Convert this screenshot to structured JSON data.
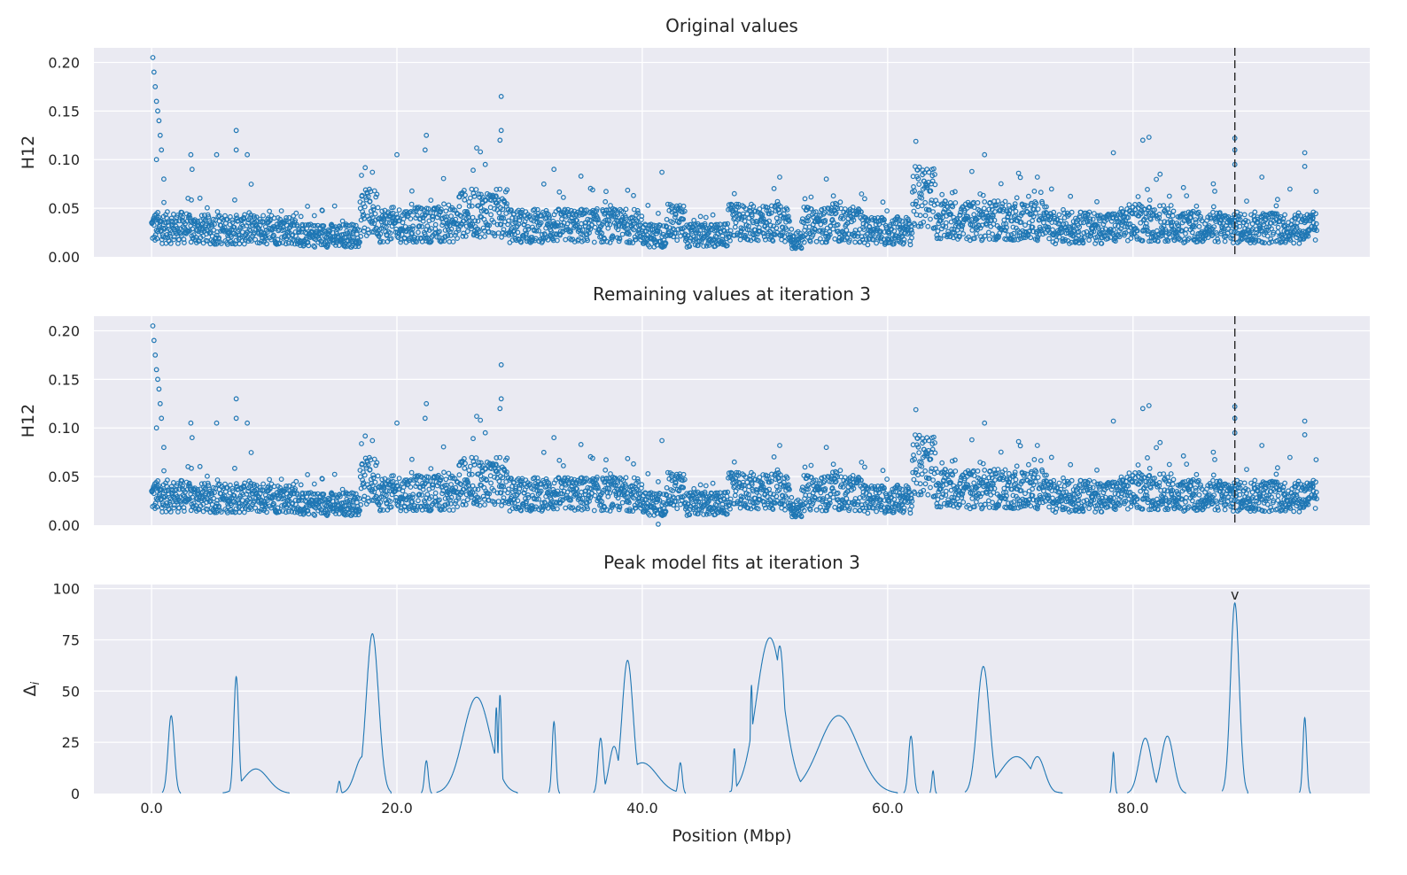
{
  "figure": {
    "xlabel": "Position (Mbp)",
    "x_ticks": [
      "0.0",
      "20.0",
      "40.0",
      "60.0",
      "80.0"
    ],
    "peak_marker": "v"
  },
  "chart_data": [
    {
      "type": "scatter",
      "title": "Original values",
      "ylabel": "H12",
      "xlim": [
        -4.7,
        99.3
      ],
      "ylim": [
        0,
        0.215
      ],
      "x_ticks": [
        0,
        20,
        40,
        60,
        80
      ],
      "y_ticks": [
        0,
        0.05,
        0.1,
        0.15,
        0.2
      ],
      "y_tick_labels": [
        "0.00",
        "0.05",
        "0.10",
        "0.15",
        "0.20"
      ],
      "marker_line_x": 88.3,
      "grid": true,
      "series": [
        {
          "x_range": [
            0,
            95
          ],
          "points": "approximately 3500 windows, baseline ~0.02-0.05 with peaks near 0 Mbp (0.205), 28.5 Mbp (0.165), 81 Mbp (0.123), 88.3 Mbp (0.122)"
        }
      ]
    },
    {
      "type": "scatter",
      "title": "Remaining values at iteration 3",
      "ylabel": "H12",
      "xlim": [
        -4.7,
        99.3
      ],
      "ylim": [
        0,
        0.215
      ],
      "x_ticks": [
        0,
        20,
        40,
        60,
        80
      ],
      "y_ticks": [
        0,
        0.05,
        0.1,
        0.15,
        0.2
      ],
      "y_tick_labels": [
        "0.00",
        "0.05",
        "0.10",
        "0.15",
        "0.20"
      ],
      "marker_line_x": 88.3,
      "grid": true
    },
    {
      "type": "line",
      "title": "Peak model fits at iteration 3",
      "ylabel": "Δi",
      "xlim": [
        -4.7,
        99.3
      ],
      "ylim": [
        0,
        102
      ],
      "x_ticks": [
        0,
        20,
        40,
        60,
        80
      ],
      "y_ticks": [
        0,
        25,
        50,
        75,
        100
      ],
      "y_tick_labels": [
        "0",
        "25",
        "50",
        "75",
        "100"
      ],
      "peak_marker_x": 88.3,
      "grid": true,
      "peaks": [
        {
          "center": 1.6,
          "height": 38,
          "width": 0.25
        },
        {
          "center": 6.9,
          "height": 57,
          "width": 0.2
        },
        {
          "center": 8.5,
          "height": 12,
          "width": 1.0
        },
        {
          "center": 15.3,
          "height": 6,
          "width": 0.1
        },
        {
          "center": 17.2,
          "height": 18,
          "width": 0.6
        },
        {
          "center": 18.0,
          "height": 78,
          "width": 0.5
        },
        {
          "center": 22.4,
          "height": 16,
          "width": 0.15
        },
        {
          "center": 26.5,
          "height": 47,
          "width": 1.1
        },
        {
          "center": 28.4,
          "height": 48,
          "width": 0.12
        },
        {
          "center": 28.1,
          "height": 42,
          "width": 0.1
        },
        {
          "center": 32.8,
          "height": 35,
          "width": 0.15
        },
        {
          "center": 36.6,
          "height": 27,
          "width": 0.2
        },
        {
          "center": 37.7,
          "height": 23,
          "width": 0.4
        },
        {
          "center": 38.8,
          "height": 65,
          "width": 0.45
        },
        {
          "center": 40.0,
          "height": 15,
          "width": 1.2
        },
        {
          "center": 43.1,
          "height": 15,
          "width": 0.15
        },
        {
          "center": 47.5,
          "height": 22,
          "width": 0.1
        },
        {
          "center": 48.9,
          "height": 53,
          "width": 0.1
        },
        {
          "center": 50.4,
          "height": 76,
          "width": 1.1
        },
        {
          "center": 51.2,
          "height": 72,
          "width": 0.4
        },
        {
          "center": 56.0,
          "height": 38,
          "width": 1.6
        },
        {
          "center": 58.6,
          "height": 3,
          "width": 0.2
        },
        {
          "center": 61.9,
          "height": 28,
          "width": 0.2
        },
        {
          "center": 63.7,
          "height": 11,
          "width": 0.1
        },
        {
          "center": 67.8,
          "height": 62,
          "width": 0.5
        },
        {
          "center": 70.5,
          "height": 18,
          "width": 1.3
        },
        {
          "center": 72.2,
          "height": 18,
          "width": 0.6
        },
        {
          "center": 78.4,
          "height": 20,
          "width": 0.1
        },
        {
          "center": 81.0,
          "height": 27,
          "width": 0.5
        },
        {
          "center": 82.8,
          "height": 28,
          "width": 0.5
        },
        {
          "center": 88.3,
          "height": 93,
          "width": 0.35
        },
        {
          "center": 94.0,
          "height": 37,
          "width": 0.15
        }
      ]
    }
  ]
}
